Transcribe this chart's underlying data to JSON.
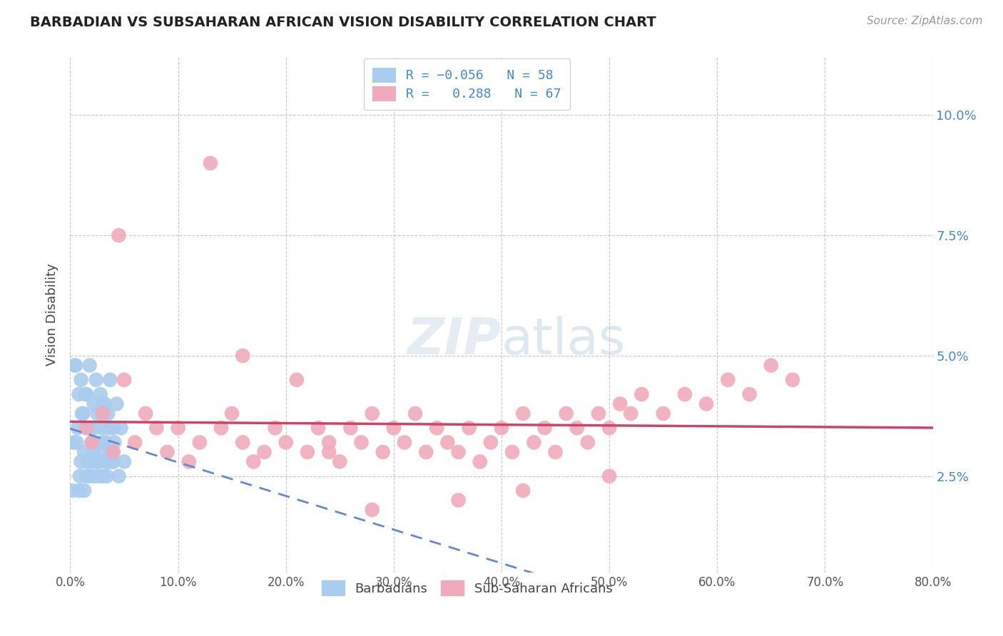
{
  "title": "BARBADIAN VS SUBSAHARAN AFRICAN VISION DISABILITY CORRELATION CHART",
  "source": "Source: ZipAtlas.com",
  "ylabel": "Vision Disability",
  "xlim": [
    0.0,
    80.0
  ],
  "ylim": [
    0.5,
    11.2
  ],
  "xticks": [
    0.0,
    10.0,
    20.0,
    30.0,
    40.0,
    50.0,
    60.0,
    70.0,
    80.0
  ],
  "xtick_labels": [
    "0.0%",
    "10.0%",
    "20.0%",
    "30.0%",
    "40.0%",
    "50.0%",
    "60.0%",
    "70.0%",
    "80.0%"
  ],
  "yticks": [
    2.5,
    5.0,
    7.5,
    10.0
  ],
  "ytick_labels": [
    "2.5%",
    "5.0%",
    "7.5%",
    "10.0%"
  ],
  "blue_color": "#aaccee",
  "pink_color": "#f0aabb",
  "blue_edge_color": "#aaccee",
  "pink_edge_color": "#f0aabb",
  "blue_line_color": "#6688cc",
  "pink_line_color": "#cc4466",
  "legend_text_color": "#4488cc",
  "title_color": "#222222",
  "source_color": "#999999",
  "grid_color": "#bbbbbb",
  "background": "#ffffff",
  "watermark": "ZIPatlas",
  "barbadians_x": [
    0.3,
    0.5,
    0.7,
    0.8,
    1.0,
    1.0,
    1.2,
    1.3,
    1.5,
    1.5,
    1.7,
    1.8,
    2.0,
    2.0,
    2.2,
    2.3,
    2.5,
    2.5,
    2.7,
    2.8,
    3.0,
    3.0,
    3.2,
    3.3,
    3.5,
    3.5,
    3.7,
    3.8,
    4.0,
    4.0,
    0.4,
    0.6,
    0.9,
    1.1,
    1.4,
    1.6,
    1.9,
    2.1,
    2.4,
    2.6,
    2.9,
    3.1,
    3.4,
    3.6,
    3.9,
    4.1,
    4.3,
    4.5,
    4.7,
    5.0,
    0.2,
    0.8,
    1.3,
    1.8,
    2.3,
    2.8,
    3.3,
    3.8
  ],
  "barbadians_y": [
    3.2,
    4.8,
    3.5,
    4.2,
    2.8,
    4.5,
    3.8,
    3.0,
    4.2,
    2.5,
    3.5,
    4.8,
    3.2,
    2.8,
    4.0,
    3.5,
    2.8,
    3.8,
    3.0,
    4.2,
    2.5,
    3.5,
    4.0,
    3.2,
    2.8,
    3.8,
    4.5,
    3.0,
    2.8,
    3.5,
    4.8,
    3.2,
    2.5,
    3.8,
    4.2,
    2.8,
    3.5,
    3.0,
    4.5,
    2.8,
    3.2,
    4.0,
    2.5,
    3.5,
    2.8,
    3.2,
    4.0,
    2.5,
    3.5,
    2.8,
    2.2,
    2.2,
    2.2,
    2.5,
    2.5,
    2.5,
    2.8,
    2.8
  ],
  "subsaharan_x": [
    1.5,
    2.0,
    3.0,
    4.0,
    5.0,
    6.0,
    7.0,
    8.0,
    9.0,
    10.0,
    11.0,
    12.0,
    13.0,
    14.0,
    15.0,
    16.0,
    17.0,
    18.0,
    19.0,
    20.0,
    21.0,
    22.0,
    23.0,
    24.0,
    25.0,
    26.0,
    27.0,
    28.0,
    29.0,
    30.0,
    31.0,
    32.0,
    33.0,
    34.0,
    35.0,
    36.0,
    37.0,
    38.0,
    39.0,
    40.0,
    41.0,
    42.0,
    43.0,
    44.0,
    45.0,
    46.0,
    47.0,
    48.0,
    49.0,
    50.0,
    51.0,
    52.0,
    53.0,
    55.0,
    57.0,
    59.0,
    61.0,
    63.0,
    65.0,
    67.0,
    4.5,
    16.0,
    24.0,
    28.0,
    36.0,
    42.0,
    50.0
  ],
  "subsaharan_y": [
    3.5,
    3.2,
    3.8,
    3.0,
    4.5,
    3.2,
    3.8,
    3.5,
    3.0,
    3.5,
    2.8,
    3.2,
    9.0,
    3.5,
    3.8,
    3.2,
    2.8,
    3.0,
    3.5,
    3.2,
    4.5,
    3.0,
    3.5,
    3.2,
    2.8,
    3.5,
    3.2,
    3.8,
    3.0,
    3.5,
    3.2,
    3.8,
    3.0,
    3.5,
    3.2,
    3.0,
    3.5,
    2.8,
    3.2,
    3.5,
    3.0,
    3.8,
    3.2,
    3.5,
    3.0,
    3.8,
    3.5,
    3.2,
    3.8,
    3.5,
    4.0,
    3.8,
    4.2,
    3.8,
    4.2,
    4.0,
    4.5,
    4.2,
    4.8,
    4.5,
    7.5,
    5.0,
    3.0,
    1.8,
    2.0,
    2.2,
    2.5
  ]
}
